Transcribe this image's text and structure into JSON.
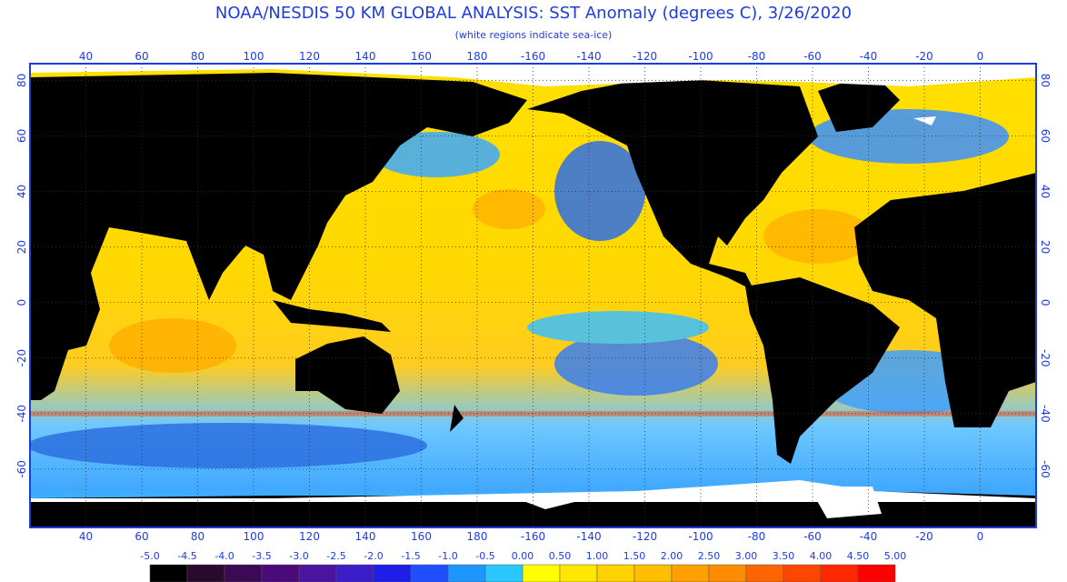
{
  "title": "NOAA/NESDIS 50 KM GLOBAL ANALYSIS: SST Anomaly (degrees C), 3/26/2020",
  "subtitle": "(white regions indicate sea-ice)",
  "lon_range": [
    20,
    380
  ],
  "lat_range": [
    -81,
    86
  ],
  "lon_ticks": [
    40,
    60,
    80,
    100,
    120,
    140,
    160,
    180,
    -160,
    -140,
    -120,
    -100,
    -80,
    -60,
    -40,
    -20,
    0
  ],
  "lat_ticks": [
    80,
    60,
    40,
    20,
    0,
    -20,
    -40,
    -60
  ],
  "colorbar": {
    "ticks": [
      {
        "value": -5,
        "label": "-5.0"
      },
      {
        "value": -4.5,
        "label": "-4.5"
      },
      {
        "value": -4,
        "label": "-4.0"
      },
      {
        "value": -3.5,
        "label": "-3.5"
      },
      {
        "value": -3,
        "label": "-3.0"
      },
      {
        "value": -2.5,
        "label": "-2.5"
      },
      {
        "value": -2,
        "label": "-2.0"
      },
      {
        "value": -1.5,
        "label": "-1.5"
      },
      {
        "value": -1,
        "label": "-1.0"
      },
      {
        "value": -0.5,
        "label": "-0.5"
      },
      {
        "value": 0,
        "label": "0.00"
      },
      {
        "value": 0.5,
        "label": "0.50"
      },
      {
        "value": 1,
        "label": "1.00"
      },
      {
        "value": 1.5,
        "label": "1.50"
      },
      {
        "value": 2,
        "label": "2.00"
      },
      {
        "value": 2.5,
        "label": "2.50"
      },
      {
        "value": 3,
        "label": "3.00"
      },
      {
        "value": 3.5,
        "label": "3.50"
      },
      {
        "value": 4,
        "label": "4.00"
      },
      {
        "value": 4.5,
        "label": "4.50"
      },
      {
        "value": 5,
        "label": "5.00"
      }
    ],
    "colors": [
      "#000000",
      "#2a0a2e",
      "#3c0a55",
      "#4a0a7a",
      "#4a14a0",
      "#3c1ec8",
      "#1e1ee6",
      "#1e50ff",
      "#1e96ff",
      "#28c8ff",
      "#ffff00",
      "#ffe600",
      "#ffd200",
      "#ffbe00",
      "#ffa000",
      "#ff8c00",
      "#ff6400",
      "#ff4600",
      "#ff2800",
      "#ff0000"
    ]
  }
}
